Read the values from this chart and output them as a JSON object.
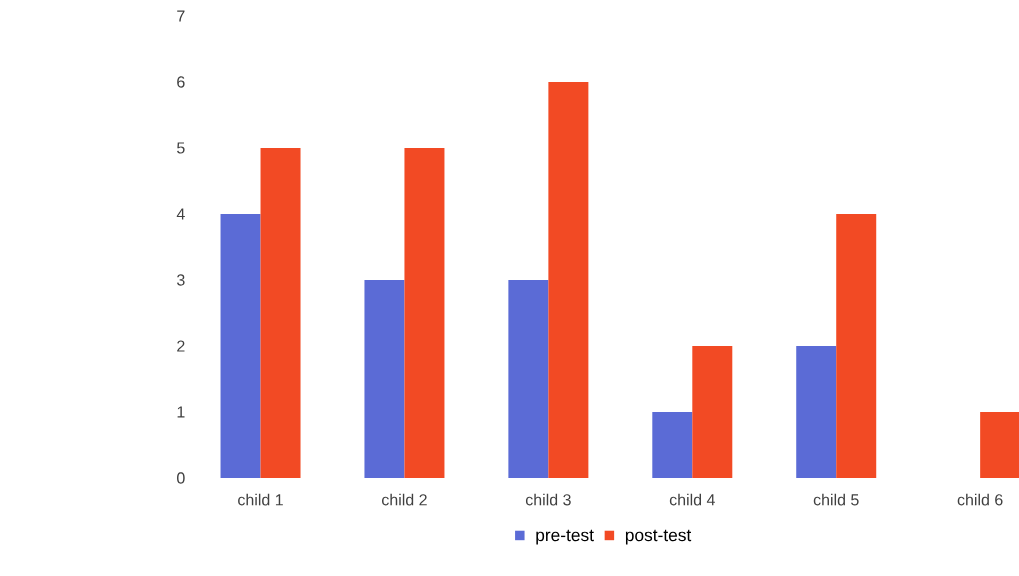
{
  "chart_data": {
    "type": "bar",
    "categories": [
      "child 1",
      "child 2",
      "child 3",
      "child 4",
      "child 5",
      "child 6"
    ],
    "series": [
      {
        "name": "pre-test",
        "color": "#5b6bd6",
        "values": [
          4,
          3,
          3,
          1,
          2,
          0
        ]
      },
      {
        "name": "post-test",
        "color": "#f24a24",
        "values": [
          5,
          5,
          6,
          2,
          4,
          1
        ]
      }
    ],
    "ylim": [
      0,
      7
    ],
    "yticks": [
      0,
      1,
      2,
      3,
      4,
      5,
      6,
      7
    ],
    "grid": false,
    "legend": "bottom"
  }
}
